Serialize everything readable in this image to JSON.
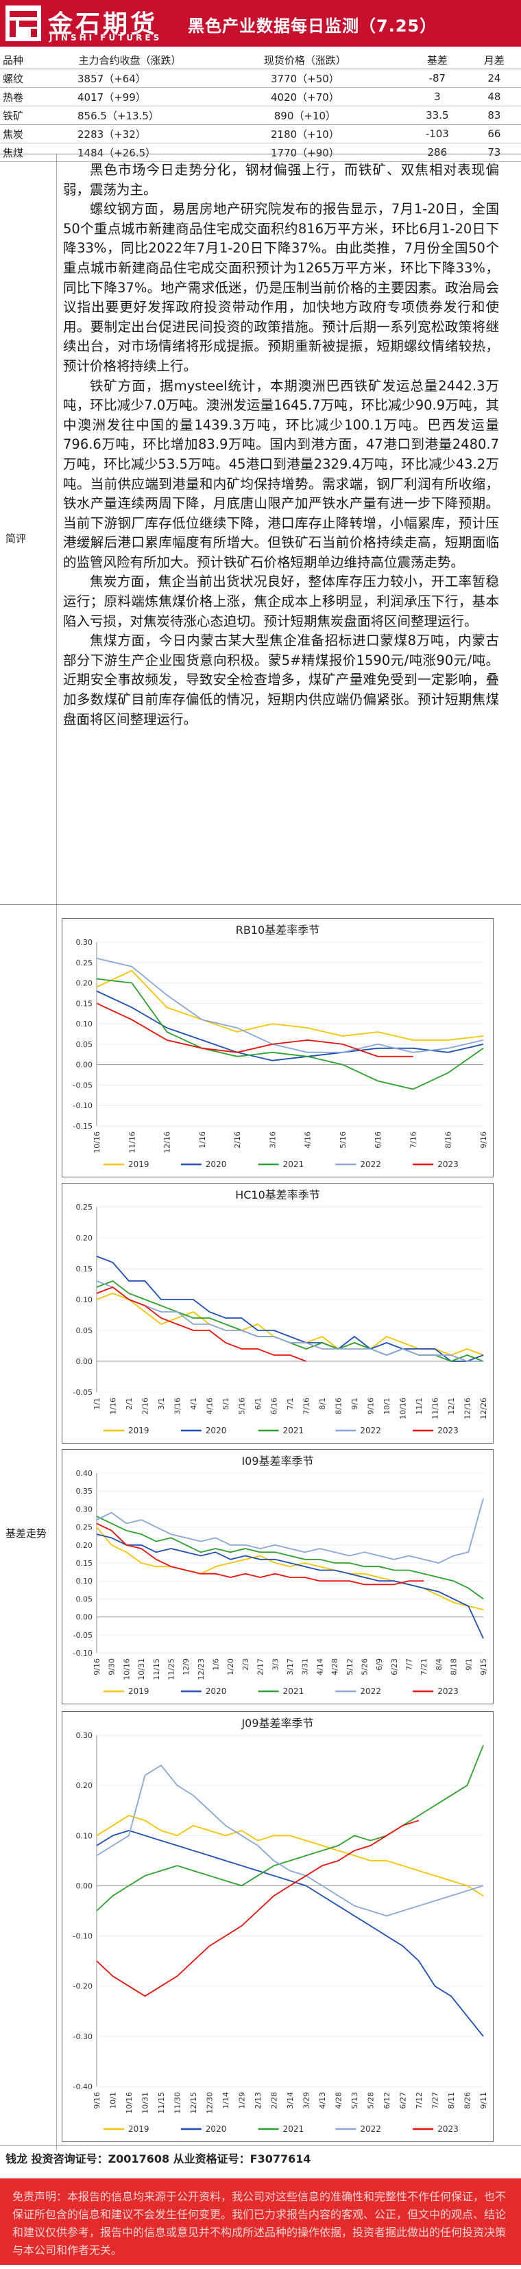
{
  "header": {
    "logo_cn": "金石期货",
    "logo_en": "JINSHI FUTURES",
    "title": "黑色产业数据每日监测（7.25）"
  },
  "table": {
    "headers": [
      "品种",
      "主力合约收盘（涨跌）",
      "现货价格（涨跌）",
      "基差",
      "月差"
    ],
    "rows": [
      [
        "螺纹",
        "3857（+64）",
        "3770（+50）",
        "-87",
        "24"
      ],
      [
        "热卷",
        "4017（+99）",
        "4020（+70）",
        "3",
        "48"
      ],
      [
        "铁矿",
        "856.5（+13.5）",
        "890（+10）",
        "33.5",
        "83"
      ],
      [
        "焦炭",
        "2283（+32）",
        "2180（+10）",
        "-103",
        "66"
      ],
      [
        "焦煤",
        "1484（+26.5）",
        "1770（+90）",
        "286",
        "73"
      ]
    ]
  },
  "sections": {
    "commentary_label": "简评",
    "basis_label": "基差走势"
  },
  "commentary": [
    "黑色市场今日走势分化，钢材偏强上行，而铁矿、双焦相对表现偏弱，震荡为主。",
    "螺纹钢方面，易居房地产研究院发布的报告显示，7月1-20日，全国50个重点城市新建商品住宅成交面积约816万平方米，环比6月1-20日下降33%，同比2022年7月1-20日下降37%。由此类推，7月份全国50个重点城市新建商品住宅成交面积预计为1265万平方米，环比下降33%，同比下降37%。地产需求低迷，仍是压制当前价格的主要因素。政治局会议指出要更好发挥政府投资带动作用，加快地方政府专项债券发行和使用。要制定出台促进民间投资的政策措施。预计后期一系列宽松政策将继续出台，对市场情绪将形成提振。预期重新被提振，短期螺纹情绪较热，预计价格将持续上行。",
    "铁矿方面，据mysteel统计，本期澳洲巴西铁矿发运总量2442.3万吨，环比减少7.0万吨。澳洲发运量1645.7万吨，环比减少90.9万吨，其中澳洲发往中国的量1439.3万吨，环比减少100.1万吨。巴西发运量796.6万吨，环比增加83.9万吨。国内到港方面，47港口到港量2480.7万吨，环比减少53.5万吨。45港口到港量2329.4万吨，环比减少43.2万吨。当前供应端到港量和内矿均保持增势。需求端，钢厂利润有所收缩，铁水产量连续两周下降，月底唐山限产加严铁水产量有进一步下降预期。当前下游钢厂库存低位继续下降，港口库存止降转增，小幅累库，预计压港缓解后港口累库幅度有所增大。但铁矿石当前价格持续走高，短期面临的监管风险有所加大。预计铁矿石价格短期单边维持高位震荡走势。",
    "焦炭方面，焦企当前出货状况良好，整体库存压力较小，开工率暂稳运行；原料端炼焦煤价格上涨，焦企成本上移明显，利润承压下行，基本陷入亏损，对焦炭待涨心态迫切。预计短期焦炭盘面将区间整理运行。",
    "焦煤方面，今日内蒙古某大型焦企准备招标进口蒙煤8万吨，内蒙古部分下游生产企业囤货意向积极。蒙5#精煤报价1590元/吨涨90元/吨。近期安全事故频发，导致安全检查增多，煤矿产量难免受到一定影响，叠加多数煤矿目前库存偏低的情况，短期内供应端仍偏紧张。预计短期焦煤盘面将区间整理运行。"
  ],
  "legend_years": [
    "2019",
    "2020",
    "2021",
    "2022",
    "2023"
  ],
  "colors": {
    "2019": "#f5c400",
    "2020": "#1f4fb4",
    "2021": "#2ea02e",
    "2022": "#8aa6d6",
    "2023": "#e8120c"
  },
  "signature": "钱龙 投资咨询证号：Z0017608 从业资格证号：F3077614",
  "disclaimer": "免责声明：本报告的信息均来源于公开资料，我公司对这些信息的准确性和完整性不作任何保证，也不保证所包含的信息和建议不会发生任何变更。我们已力求报告内容的客观、公正，但文中的观点、结论和建议仅供参考，报告中的信息或意见并不构成所述品种的操作依据，投资者据此做出的任何投资决策与本公司和作者无关。",
  "chart_data": [
    {
      "type": "line",
      "title": "RB10基差率季节",
      "x": [
        "10/16",
        "11/16",
        "12/16",
        "1/16",
        "2/16",
        "3/16",
        "4/16",
        "5/16",
        "6/16",
        "7/16",
        "8/16",
        "9/16"
      ],
      "ylim": [
        -0.15,
        0.3
      ],
      "yticks": [
        -0.15,
        -0.1,
        -0.05,
        0,
        0.05,
        0.1,
        0.15,
        0.2,
        0.25,
        0.3
      ],
      "series": [
        {
          "name": "2019",
          "values": [
            0.19,
            0.23,
            0.14,
            0.11,
            0.08,
            0.1,
            0.09,
            0.07,
            0.08,
            0.06,
            0.06,
            0.07
          ]
        },
        {
          "name": "2020",
          "values": [
            0.18,
            0.14,
            0.09,
            0.06,
            0.03,
            0.01,
            0.02,
            0.03,
            0.04,
            0.04,
            0.03,
            0.05
          ]
        },
        {
          "name": "2021",
          "values": [
            0.21,
            0.2,
            0.08,
            0.04,
            0.02,
            0.03,
            0.02,
            0.0,
            -0.04,
            -0.06,
            -0.02,
            0.04
          ]
        },
        {
          "name": "2022",
          "values": [
            0.26,
            0.24,
            0.17,
            0.11,
            0.09,
            0.05,
            0.03,
            0.03,
            0.05,
            0.03,
            0.04,
            0.06
          ]
        },
        {
          "name": "2023",
          "values": [
            0.15,
            0.11,
            0.06,
            0.04,
            0.03,
            0.05,
            0.06,
            0.05,
            0.02,
            0.02,
            null,
            null
          ]
        }
      ]
    },
    {
      "type": "line",
      "title": "HC10基差率季节",
      "x": [
        "1/1",
        "1/16",
        "2/1",
        "2/16",
        "3/1",
        "3/16",
        "4/1",
        "4/16",
        "5/1",
        "5/16",
        "6/1",
        "6/16",
        "7/1",
        "7/16",
        "8/1",
        "8/16",
        "9/1",
        "9/16",
        "10/1",
        "10/16",
        "11/1",
        "11/16",
        "12/1",
        "12/16",
        "12/26"
      ],
      "ylim": [
        -0.05,
        0.25
      ],
      "yticks": [
        -0.05,
        0,
        0.05,
        0.1,
        0.15,
        0.2,
        0.25
      ],
      "series": [
        {
          "name": "2019",
          "values": [
            0.1,
            0.11,
            0.1,
            0.08,
            0.06,
            0.07,
            0.08,
            0.06,
            0.05,
            0.05,
            0.06,
            0.04,
            0.03,
            0.03,
            0.04,
            0.02,
            0.03,
            0.02,
            0.04,
            0.03,
            0.02,
            0.02,
            0.01,
            0.02,
            0.01
          ]
        },
        {
          "name": "2020",
          "values": [
            0.17,
            0.16,
            0.13,
            0.13,
            0.1,
            0.1,
            0.1,
            0.08,
            0.07,
            0.07,
            0.05,
            0.05,
            0.04,
            0.03,
            0.03,
            0.02,
            0.04,
            0.02,
            0.03,
            0.02,
            0.02,
            0.02,
            0.0,
            0.0,
            0.01
          ]
        },
        {
          "name": "2021",
          "values": [
            0.12,
            0.13,
            0.11,
            0.1,
            0.09,
            0.08,
            0.07,
            0.07,
            0.06,
            0.05,
            0.04,
            0.04,
            0.03,
            0.02,
            0.03,
            0.02,
            0.03,
            0.02,
            0.01,
            0.02,
            0.01,
            0.01,
            0.0,
            0.01,
            0.0
          ]
        },
        {
          "name": "2022",
          "values": [
            0.13,
            0.12,
            0.1,
            0.09,
            0.08,
            0.08,
            0.06,
            0.06,
            0.05,
            0.05,
            0.04,
            0.04,
            0.03,
            0.03,
            0.02,
            0.02,
            0.02,
            0.02,
            0.01,
            0.02,
            0.01,
            0.01,
            0.01,
            0.0,
            0.0
          ]
        },
        {
          "name": "2023",
          "values": [
            0.11,
            0.12,
            0.1,
            0.09,
            0.07,
            0.06,
            0.05,
            0.05,
            0.03,
            0.02,
            0.02,
            0.01,
            0.01,
            0.0,
            null,
            null,
            null,
            null,
            null,
            null,
            null,
            null,
            null,
            null,
            null
          ]
        }
      ]
    },
    {
      "type": "line",
      "title": "I09基差率季节",
      "x": [
        "9/16",
        "9/30",
        "10/16",
        "10/31",
        "11/15",
        "11/25",
        "12/9",
        "12/23",
        "1/6",
        "1/20",
        "2/3",
        "2/17",
        "3/3",
        "3/17",
        "3/31",
        "4/14",
        "4/28",
        "5/12",
        "5/26",
        "6/9",
        "6/23",
        "7/7",
        "7/21",
        "8/4",
        "8/18",
        "9/1",
        "9/15"
      ],
      "ylim": [
        -0.1,
        0.4
      ],
      "yticks": [
        -0.1,
        -0.05,
        0,
        0.05,
        0.1,
        0.15,
        0.2,
        0.25,
        0.3,
        0.35,
        0.4
      ],
      "series": [
        {
          "name": "2019",
          "values": [
            0.25,
            0.2,
            0.18,
            0.15,
            0.14,
            0.14,
            0.13,
            0.12,
            0.14,
            0.15,
            0.16,
            0.17,
            0.15,
            0.14,
            0.15,
            0.14,
            0.13,
            0.12,
            0.12,
            0.11,
            0.1,
            0.09,
            0.08,
            0.06,
            0.04,
            0.03,
            0.02
          ]
        },
        {
          "name": "2020",
          "values": [
            0.23,
            0.22,
            0.2,
            0.2,
            0.18,
            0.19,
            0.18,
            0.17,
            0.18,
            0.16,
            0.17,
            0.16,
            0.16,
            0.15,
            0.14,
            0.13,
            0.13,
            0.12,
            0.11,
            0.1,
            0.1,
            0.09,
            0.08,
            0.07,
            0.05,
            0.03,
            -0.06
          ]
        },
        {
          "name": "2021",
          "values": [
            0.28,
            0.26,
            0.24,
            0.23,
            0.21,
            0.22,
            0.2,
            0.18,
            0.19,
            0.18,
            0.19,
            0.18,
            0.18,
            0.17,
            0.16,
            0.16,
            0.15,
            0.15,
            0.14,
            0.14,
            0.13,
            0.13,
            0.12,
            0.11,
            0.1,
            0.08,
            0.05
          ]
        },
        {
          "name": "2022",
          "values": [
            0.27,
            0.29,
            0.26,
            0.27,
            0.25,
            0.23,
            0.22,
            0.21,
            0.22,
            0.2,
            0.2,
            0.19,
            0.2,
            0.19,
            0.18,
            0.19,
            0.18,
            0.17,
            0.18,
            0.17,
            0.16,
            0.17,
            0.16,
            0.15,
            0.17,
            0.18,
            0.33
          ]
        },
        {
          "name": "2023",
          "values": [
            0.26,
            0.24,
            0.2,
            0.19,
            0.16,
            0.14,
            0.13,
            0.12,
            0.12,
            0.11,
            0.12,
            0.11,
            0.12,
            0.11,
            0.11,
            0.1,
            0.1,
            0.1,
            0.09,
            0.09,
            0.09,
            0.1,
            0.1,
            null,
            null,
            null,
            null
          ]
        }
      ]
    },
    {
      "type": "line",
      "title": "J09基差率季节",
      "x": [
        "9/16",
        "10/1",
        "10/16",
        "10/31",
        "11/15",
        "11/30",
        "12/15",
        "12/30",
        "1/14",
        "1/29",
        "2/13",
        "2/28",
        "3/14",
        "3/29",
        "4/13",
        "4/28",
        "5/13",
        "5/28",
        "6/12",
        "6/27",
        "7/12",
        "7/27",
        "8/11",
        "8/26",
        "9/11"
      ],
      "ylim": [
        -0.4,
        0.3
      ],
      "yticks": [
        -0.4,
        -0.3,
        -0.2,
        -0.1,
        0,
        0.1,
        0.2,
        0.3
      ],
      "series": [
        {
          "name": "2019",
          "values": [
            0.1,
            0.12,
            0.14,
            0.13,
            0.11,
            0.1,
            0.12,
            0.11,
            0.1,
            0.11,
            0.09,
            0.1,
            0.1,
            0.09,
            0.08,
            0.07,
            0.06,
            0.05,
            0.05,
            0.04,
            0.03,
            0.02,
            0.01,
            0.0,
            -0.02
          ]
        },
        {
          "name": "2020",
          "values": [
            0.08,
            0.1,
            0.11,
            0.1,
            0.09,
            0.08,
            0.07,
            0.06,
            0.05,
            0.04,
            0.03,
            0.02,
            0.01,
            0.0,
            -0.02,
            -0.04,
            -0.06,
            -0.08,
            -0.1,
            -0.12,
            -0.15,
            -0.2,
            -0.22,
            -0.26,
            -0.3
          ]
        },
        {
          "name": "2021",
          "values": [
            -0.05,
            -0.02,
            0.0,
            0.02,
            0.03,
            0.04,
            0.03,
            0.02,
            0.01,
            0.0,
            0.02,
            0.04,
            0.05,
            0.06,
            0.07,
            0.08,
            0.1,
            0.09,
            0.1,
            0.12,
            0.14,
            0.16,
            0.18,
            0.2,
            0.28
          ]
        },
        {
          "name": "2022",
          "values": [
            0.06,
            0.08,
            0.1,
            0.22,
            0.24,
            0.2,
            0.18,
            0.15,
            0.12,
            0.1,
            0.08,
            0.05,
            0.03,
            0.02,
            0.0,
            -0.02,
            -0.04,
            -0.05,
            -0.06,
            -0.05,
            -0.04,
            -0.03,
            -0.02,
            -0.01,
            0.0
          ]
        },
        {
          "name": "2023",
          "values": [
            -0.15,
            -0.18,
            -0.2,
            -0.22,
            -0.2,
            -0.18,
            -0.15,
            -0.12,
            -0.1,
            -0.08,
            -0.05,
            -0.02,
            0.0,
            0.02,
            0.04,
            0.05,
            0.07,
            0.08,
            0.1,
            0.12,
            0.13,
            null,
            null,
            null,
            null
          ]
        }
      ]
    }
  ]
}
